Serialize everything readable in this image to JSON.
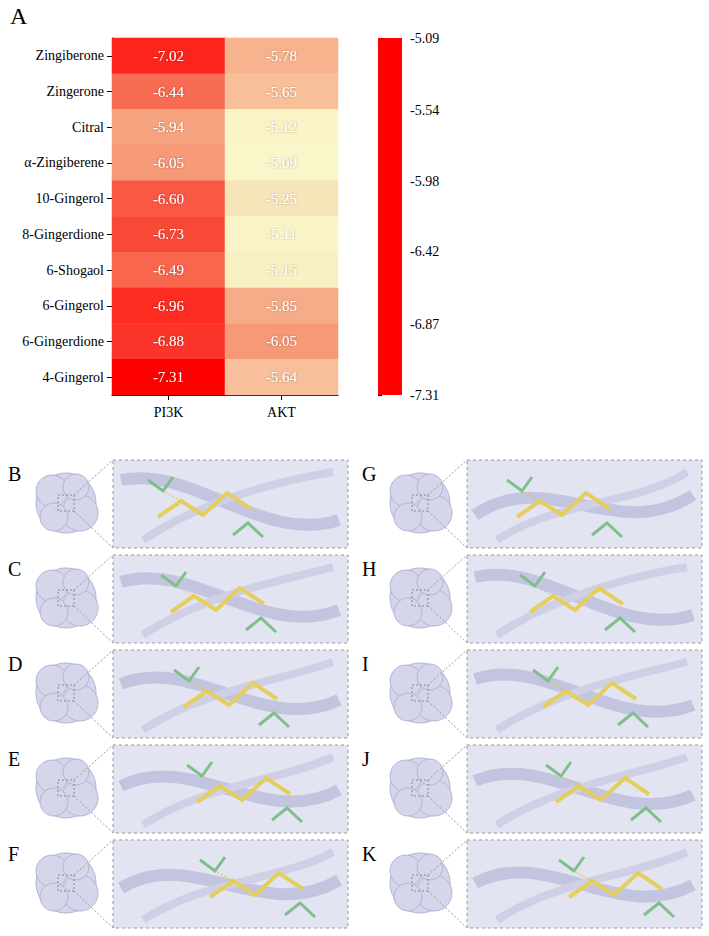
{
  "panel_label": "A",
  "chart_data": {
    "type": "heatmap",
    "categories": [
      "Zingiberone",
      "Zingerone",
      "Citral",
      "α-Zingiberene",
      "10-Gingerol",
      "8-Gingerdione",
      "6-Shogaol",
      "6-Gingerol",
      "6-Gingerdione",
      "4-Gingerol"
    ],
    "columns": [
      "PI3K",
      "AKT"
    ],
    "values": [
      [
        -7.02,
        -5.78
      ],
      [
        -6.44,
        -5.65
      ],
      [
        -5.94,
        -5.12
      ],
      [
        -6.05,
        -5.09
      ],
      [
        -6.6,
        -5.25
      ],
      [
        -6.73,
        -5.11
      ],
      [
        -6.49,
        -5.15
      ],
      [
        -6.96,
        -5.85
      ],
      [
        -6.88,
        -6.05
      ],
      [
        -7.31,
        -5.64
      ]
    ],
    "value_labels": [
      [
        "-7.02",
        "-5.78"
      ],
      [
        "-6.44",
        "-5.65"
      ],
      [
        "-5.94",
        "-5.12"
      ],
      [
        "-6.05",
        "-5.09"
      ],
      [
        "-6.60",
        "-5.25"
      ],
      [
        "-6.73",
        "-5.11"
      ],
      [
        "-6.49",
        "-5.15"
      ],
      [
        "-6.96",
        "-5.85"
      ],
      [
        "-6.88",
        "-6.05"
      ],
      [
        "-7.31",
        "-5.64"
      ]
    ],
    "data_labels": true,
    "colorbar": {
      "range": [
        -7.31,
        -5.09
      ],
      "ticks": [
        -5.09,
        -5.54,
        -5.98,
        -6.42,
        -6.87,
        -7.31
      ],
      "colors": [
        "#ff0000",
        "#f58a6a",
        "#f9f6c9"
      ]
    }
  },
  "docking_panels": [
    "B",
    "C",
    "D",
    "E",
    "F",
    "G",
    "H",
    "I",
    "J",
    "K"
  ]
}
